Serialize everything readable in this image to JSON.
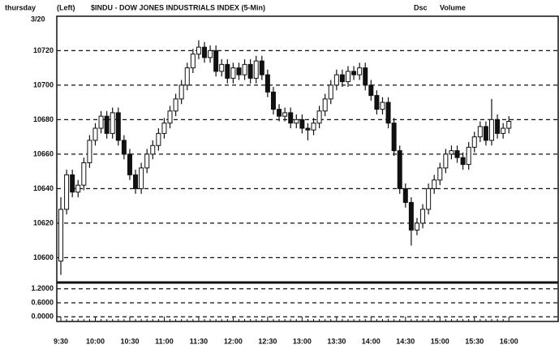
{
  "chart_data": {
    "type": "candlestick",
    "day": "thursday",
    "date": "3/20",
    "side": "(Left)",
    "title": "$INDU - DOW JONES INDUSTRIALS INDEX (5-Min)",
    "right_label_1": "Dsc",
    "right_label_2": "Volume",
    "categories": [
      "9:30",
      null,
      null,
      null,
      null,
      null,
      "10:00",
      null,
      null,
      null,
      null,
      null,
      "10:30",
      null,
      null,
      null,
      null,
      null,
      "11:00",
      null,
      null,
      null,
      null,
      null,
      "11:30",
      null,
      null,
      null,
      null,
      null,
      "12:00",
      null,
      null,
      null,
      null,
      null,
      "12:30",
      null,
      null,
      null,
      null,
      null,
      "13:00",
      null,
      null,
      null,
      null,
      null,
      "13:30",
      null,
      null,
      null,
      null,
      null,
      "14:00",
      null,
      null,
      null,
      null,
      null,
      "14:30",
      null,
      null,
      null,
      null,
      null,
      "15:00",
      null,
      null,
      null,
      null,
      null,
      "15:30",
      null,
      null,
      null,
      null,
      null,
      "16:00"
    ],
    "open": [
      10598,
      10628,
      10648,
      10638,
      10642,
      10655,
      10668,
      10675,
      10682,
      10672,
      10684,
      10668,
      10660,
      10648,
      10640,
      10652,
      10660,
      10665,
      10672,
      10678,
      10685,
      10692,
      10700,
      10710,
      10718,
      10722,
      10716,
      10720,
      10708,
      10712,
      10704,
      10710,
      10706,
      10712,
      10704,
      10714,
      10706,
      10696,
      10686,
      10682,
      10684,
      10678,
      10680,
      10675,
      10674,
      10678,
      10685,
      10692,
      10700,
      10706,
      10702,
      10708,
      10706,
      10710,
      10700,
      10694,
      10686,
      10690,
      10678,
      10662,
      10640,
      10632,
      10616,
      10620,
      10628,
      10640,
      10645,
      10652,
      10660,
      10662,
      10658,
      10654,
      10664,
      10670,
      10676,
      10668,
      10680,
      10672,
      10675
    ],
    "high": [
      10635,
      10651,
      10651,
      10645,
      10658,
      10671,
      10678,
      10685,
      10685,
      10687,
      10687,
      10671,
      10663,
      10651,
      10655,
      10663,
      10668,
      10675,
      10681,
      10688,
      10695,
      10703,
      10713,
      10721,
      10726,
      10725,
      10723,
      10723,
      10715,
      10715,
      10713,
      10713,
      10715,
      10715,
      10717,
      10717,
      10709,
      10699,
      10689,
      10687,
      10687,
      10683,
      10683,
      10678,
      10681,
      10688,
      10695,
      10703,
      10709,
      10709,
      10711,
      10711,
      10713,
      10713,
      10703,
      10697,
      10693,
      10693,
      10681,
      10665,
      10643,
      10635,
      10623,
      10631,
      10643,
      10648,
      10655,
      10663,
      10665,
      10665,
      10661,
      10667,
      10673,
      10679,
      10679,
      10692,
      10683,
      10678,
      10682
    ],
    "low": [
      10590,
      10625,
      10635,
      10635,
      10639,
      10652,
      10665,
      10672,
      10669,
      10669,
      10665,
      10657,
      10645,
      10637,
      10637,
      10649,
      10657,
      10662,
      10669,
      10675,
      10682,
      10689,
      10697,
      10707,
      10715,
      10713,
      10713,
      10705,
      10705,
      10701,
      10701,
      10703,
      10703,
      10701,
      10701,
      10703,
      10693,
      10683,
      10679,
      10679,
      10675,
      10675,
      10672,
      10668,
      10671,
      10675,
      10682,
      10689,
      10697,
      10699,
      10699,
      10703,
      10703,
      10697,
      10691,
      10683,
      10683,
      10675,
      10659,
      10637,
      10629,
      10607,
      10613,
      10617,
      10625,
      10637,
      10642,
      10649,
      10657,
      10655,
      10651,
      10651,
      10661,
      10667,
      10665,
      10665,
      10669,
      10669,
      10672
    ],
    "close": [
      10628,
      10648,
      10638,
      10642,
      10655,
      10668,
      10675,
      10682,
      10672,
      10684,
      10668,
      10660,
      10648,
      10640,
      10652,
      10660,
      10665,
      10672,
      10678,
      10685,
      10692,
      10700,
      10710,
      10718,
      10722,
      10716,
      10720,
      10708,
      10712,
      10704,
      10710,
      10706,
      10712,
      10704,
      10714,
      10706,
      10696,
      10686,
      10682,
      10684,
      10678,
      10680,
      10675,
      10674,
      10678,
      10685,
      10692,
      10700,
      10706,
      10702,
      10708,
      10706,
      10710,
      10700,
      10694,
      10686,
      10690,
      10678,
      10662,
      10640,
      10632,
      10616,
      10620,
      10628,
      10640,
      10645,
      10652,
      10660,
      10662,
      10658,
      10654,
      10664,
      10670,
      10676,
      10668,
      10680,
      10672,
      10675,
      10679
    ],
    "up_color": "#ffffff",
    "down_color": "#111111",
    "ylim": [
      10587,
      10739
    ],
    "yticks": [
      10600,
      10620,
      10640,
      10660,
      10680,
      10700,
      10720
    ],
    "grid": true,
    "volume_ylim": [
      -0.2,
      1.4
    ],
    "volume_ticks": [
      {
        "value": 1.2,
        "label": "1.2000"
      },
      {
        "value": 0.6,
        "label": "0.6000"
      },
      {
        "value": 0,
        "label": "0.0000"
      }
    ]
  }
}
